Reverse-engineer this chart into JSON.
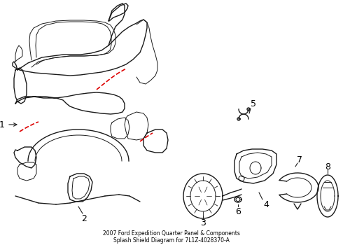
{
  "title": "2007 Ford Expedition Quarter Panel & Components\nSplash Shield Diagram for 7L1Z-4028370-A",
  "bg_color": "#ffffff",
  "line_color": "#1a1a1a",
  "red_dash_color": "#dd0000",
  "label_color": "#000000",
  "figsize": [
    4.9,
    3.6
  ],
  "dpi": 100
}
